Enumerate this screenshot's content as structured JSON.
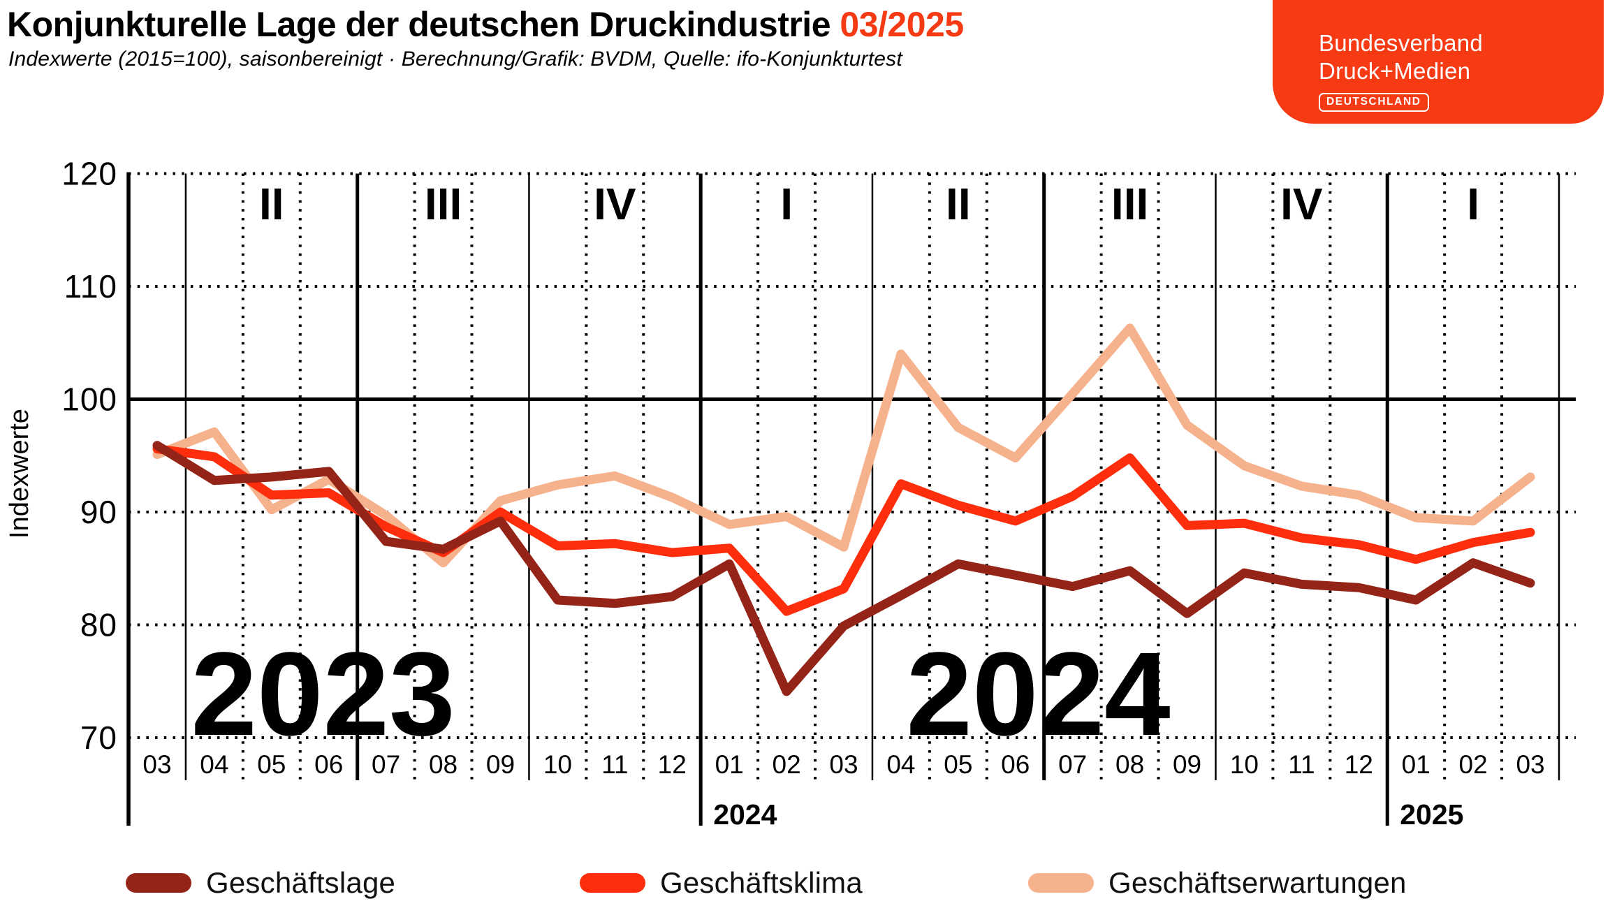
{
  "header": {
    "title": "Konjunkturelle Lage der deutschen Druckindustrie",
    "period": "03/2025",
    "subtitle": "Indexwerte (2015=100), saisonbereinigt · Berechnung/Grafik: BVDM, Quelle: ifo-Konjunkturtest"
  },
  "logo": {
    "line1": "Bundesverband",
    "line2": "Druck+Medien",
    "badge": "DEUTSCHLAND"
  },
  "colors": {
    "accent": "#F63A13",
    "lage": "#952418",
    "klima": "#FE2E0C",
    "erwartungen": "#F6B28D",
    "quarter_label": "#FBD8C2",
    "watermark": "#FCE4D4",
    "grid": "#000000"
  },
  "axis": {
    "y_label": "Indexwerte",
    "y_ticks": [
      70,
      80,
      90,
      100,
      110,
      120
    ]
  },
  "chart_data": {
    "type": "line",
    "title": "Konjunkturelle Lage der deutschen Druckindustrie 03/2025",
    "xlabel": "",
    "ylabel": "Indexwerte",
    "ylim": [
      70,
      120
    ],
    "baseline_value": 100,
    "grid": "dotted",
    "legend_position": "bottom",
    "x_categories": [
      "03",
      "04",
      "05",
      "06",
      "07",
      "08",
      "09",
      "10",
      "11",
      "12",
      "01",
      "02",
      "03",
      "04",
      "05",
      "06",
      "07",
      "08",
      "09",
      "10",
      "11",
      "12",
      "01",
      "02",
      "03"
    ],
    "year_labels": [
      {
        "text": "2024",
        "starts_at_month_index": 10
      },
      {
        "text": "2025",
        "starts_at_month_index": 22
      }
    ],
    "quarter_labels": [
      {
        "label": "II",
        "month_index": 2
      },
      {
        "label": "III",
        "month_index": 5
      },
      {
        "label": "IV",
        "month_index": 8
      },
      {
        "label": "I",
        "month_index": 11
      },
      {
        "label": "II",
        "month_index": 14
      },
      {
        "label": "III",
        "month_index": 17
      },
      {
        "label": "IV",
        "month_index": 20
      },
      {
        "label": "I",
        "month_index": 23
      }
    ],
    "year_watermarks": [
      {
        "text": "2023",
        "center_month_index": 3.4
      },
      {
        "text": "2024",
        "center_month_index": 15.9
      }
    ],
    "series": [
      {
        "name": "Geschäftslage",
        "color_key": "lage",
        "values": [
          95.9,
          92.8,
          93.1,
          93.6,
          87.4,
          86.7,
          89.2,
          82.2,
          81.9,
          82.5,
          85.4,
          74.1,
          79.9,
          82.6,
          85.4,
          84.4,
          83.4,
          84.8,
          81.0,
          84.6,
          83.6,
          83.3,
          82.2,
          85.5,
          83.7
        ]
      },
      {
        "name": "Geschäftsklima",
        "color_key": "klima",
        "values": [
          95.6,
          94.9,
          91.5,
          91.7,
          88.7,
          86.4,
          90.0,
          87.0,
          87.2,
          86.4,
          86.8,
          81.2,
          83.2,
          92.5,
          90.6,
          89.2,
          91.4,
          94.8,
          88.8,
          89.0,
          87.7,
          87.1,
          85.8,
          87.3,
          88.2
        ]
      },
      {
        "name": "Geschäftserwartungen",
        "color_key": "erwartungen",
        "values": [
          95.1,
          97.1,
          90.2,
          92.9,
          89.7,
          85.5,
          91.0,
          92.4,
          93.2,
          91.3,
          88.9,
          89.6,
          86.9,
          104.0,
          97.5,
          94.8,
          100.5,
          106.3,
          97.7,
          94.1,
          92.3,
          91.5,
          89.5,
          89.2,
          93.1
        ]
      }
    ]
  },
  "legend": {
    "items": [
      {
        "label": "Geschäftslage"
      },
      {
        "label": "Geschäftsklima"
      },
      {
        "label": "Geschäftserwartungen"
      }
    ]
  }
}
